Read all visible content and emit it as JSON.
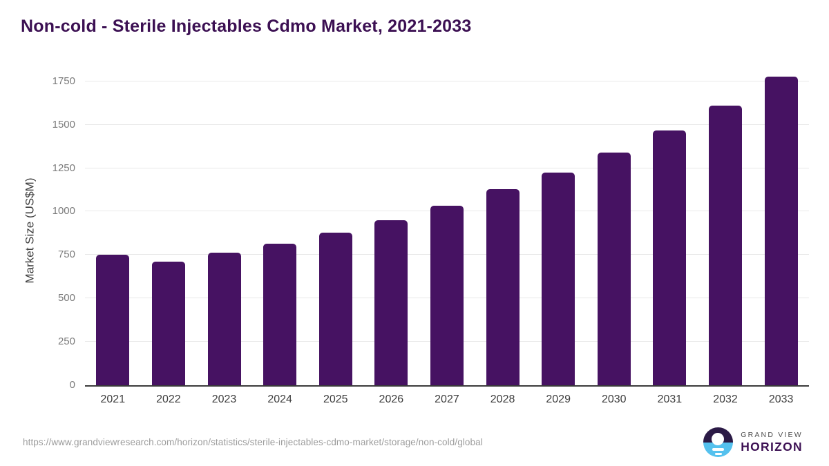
{
  "chart_data": {
    "type": "bar",
    "title": "Non-cold - Sterile Injectables Cdmo Market, 2021-2033",
    "xlabel": "",
    "ylabel": "Market Size (US$M)",
    "categories": [
      "2021",
      "2022",
      "2023",
      "2024",
      "2025",
      "2026",
      "2027",
      "2028",
      "2029",
      "2030",
      "2031",
      "2032",
      "2033"
    ],
    "values": [
      750,
      710,
      763,
      815,
      878,
      951,
      1035,
      1128,
      1226,
      1340,
      1465,
      1611,
      1778
    ],
    "y_ticks": [
      0,
      250,
      500,
      750,
      1000,
      1250,
      1500,
      1750
    ],
    "ylim": [
      0,
      1780
    ],
    "grid": "horizontal",
    "legend": "none",
    "bar_color": "#461262"
  },
  "colors": {
    "title": "#3c1053",
    "bar": "#461262",
    "gridline": "#e8e8e8",
    "axis_line": "#3a3a3a",
    "tick_label": "#7a7a7a",
    "x_label": "#3d3d3d",
    "url_text": "#9c9c9c",
    "logo_purple": "#2b1a46",
    "logo_blue": "#55c1ee"
  },
  "footer": {
    "source_url": "https://www.grandviewresearch.com/horizon/statistics/sterile-injectables-cdmo-market/storage/non-cold/global",
    "logo": {
      "line1": "GRAND VIEW",
      "line2": "HORIZON"
    }
  }
}
